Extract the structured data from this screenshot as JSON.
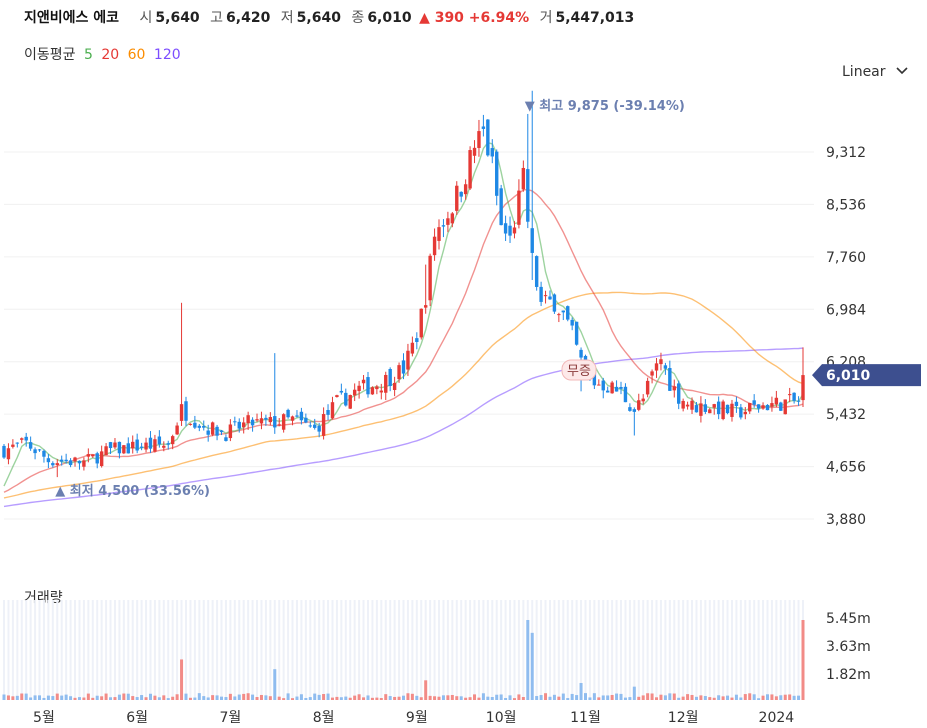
{
  "header": {
    "name": "지앤비에스 에코",
    "open_label": "시",
    "open": "5,640",
    "high_label": "고",
    "high": "6,420",
    "low_label": "저",
    "low": "5,640",
    "close_label": "종",
    "close": "6,010",
    "change": "▲ 390 +6.94%",
    "volume_label": "거",
    "volume": "5,447,013"
  },
  "ma_legend": {
    "title": "이동평균",
    "items": [
      {
        "label": "5",
        "color": "#4caf50"
      },
      {
        "label": "20",
        "color": "#e53935"
      },
      {
        "label": "60",
        "color": "#fb8c00"
      },
      {
        "label": "120",
        "color": "#7c4dff"
      }
    ]
  },
  "scale_selector": {
    "label": "Linear"
  },
  "price_axis": {
    "ticks": [
      "9,312",
      "8,536",
      "7,760",
      "6,984",
      "6,208",
      "5,432",
      "4,656",
      "3,880"
    ]
  },
  "volume_axis": {
    "title": "거래량",
    "ticks": [
      "5.45m",
      "3.63m",
      "1.82m"
    ]
  },
  "x_axis": {
    "ticks": [
      "5월",
      "6월",
      "7월",
      "8월",
      "9월",
      "10월",
      "11월",
      "12월",
      "2024"
    ]
  },
  "annotations": {
    "high": "▼ 최고 9,875 (-39.14%)",
    "low": "▲ 최저 4,500 (33.56%)",
    "badge": "무증",
    "current_price": "6,010"
  },
  "colors": {
    "up": "#e53935",
    "down": "#1e88e5",
    "current_tag": "#3d4f8f",
    "annotation": "#6b7fb0"
  },
  "chart_data": {
    "type": "candlestick",
    "ylim": [
      3600,
      10100
    ],
    "volume_max_m": 5.45,
    "month_ticks": [
      {
        "label": "5월",
        "index": 9
      },
      {
        "label": "6월",
        "index": 30
      },
      {
        "label": "7월",
        "index": 51
      },
      {
        "label": "8월",
        "index": 72
      },
      {
        "label": "9월",
        "index": 93
      },
      {
        "label": "10월",
        "index": 112
      },
      {
        "label": "11월",
        "index": 131
      },
      {
        "label": "12월",
        "index": 153
      },
      {
        "label": "2024",
        "index": 174
      }
    ],
    "close_keyframes": [
      [
        0,
        4900
      ],
      [
        5,
        5000
      ],
      [
        10,
        4750
      ],
      [
        18,
        4720
      ],
      [
        24,
        4900
      ],
      [
        30,
        4950
      ],
      [
        37,
        4980
      ],
      [
        40,
        5500
      ],
      [
        45,
        5250
      ],
      [
        50,
        5150
      ],
      [
        55,
        5300
      ],
      [
        60,
        5300
      ],
      [
        65,
        5350
      ],
      [
        70,
        5200
      ],
      [
        75,
        5600
      ],
      [
        80,
        5800
      ],
      [
        85,
        5900
      ],
      [
        90,
        6100
      ],
      [
        93,
        6600
      ],
      [
        95,
        7200
      ],
      [
        97,
        8100
      ],
      [
        100,
        8400
      ],
      [
        103,
        8800
      ],
      [
        106,
        9400
      ],
      [
        108,
        9600
      ],
      [
        110,
        9100
      ],
      [
        112,
        8200
      ],
      [
        114,
        8000
      ],
      [
        117,
        8900
      ],
      [
        119,
        7700
      ],
      [
        121,
        7050
      ],
      [
        124,
        7100
      ],
      [
        126,
        6900
      ],
      [
        128,
        6600
      ],
      [
        130,
        6200
      ],
      [
        133,
        5900
      ],
      [
        136,
        5850
      ],
      [
        139,
        5750
      ],
      [
        142,
        5500
      ],
      [
        144,
        5650
      ],
      [
        146,
        6000
      ],
      [
        148,
        6250
      ],
      [
        150,
        5900
      ],
      [
        152,
        5700
      ],
      [
        155,
        5550
      ],
      [
        160,
        5550
      ],
      [
        165,
        5450
      ],
      [
        170,
        5550
      ],
      [
        175,
        5600
      ],
      [
        179,
        5620
      ],
      [
        180,
        6010
      ]
    ],
    "events": [
      [
        40,
        1500
      ],
      [
        61,
        1100
      ],
      [
        95,
        600
      ],
      [
        119,
        2400
      ],
      [
        130,
        -500
      ],
      [
        118,
        2500
      ],
      [
        142,
        -350
      ],
      [
        119,
        -400
      ]
    ],
    "ma": [
      {
        "name": "5",
        "color": "#4caf50",
        "window": 5
      },
      {
        "name": "20",
        "color": "#e53935",
        "window": 20
      },
      {
        "name": "60",
        "color": "#fb8c00",
        "window": 60
      },
      {
        "name": "120",
        "color": "#7c4dff",
        "window": 120
      }
    ]
  }
}
